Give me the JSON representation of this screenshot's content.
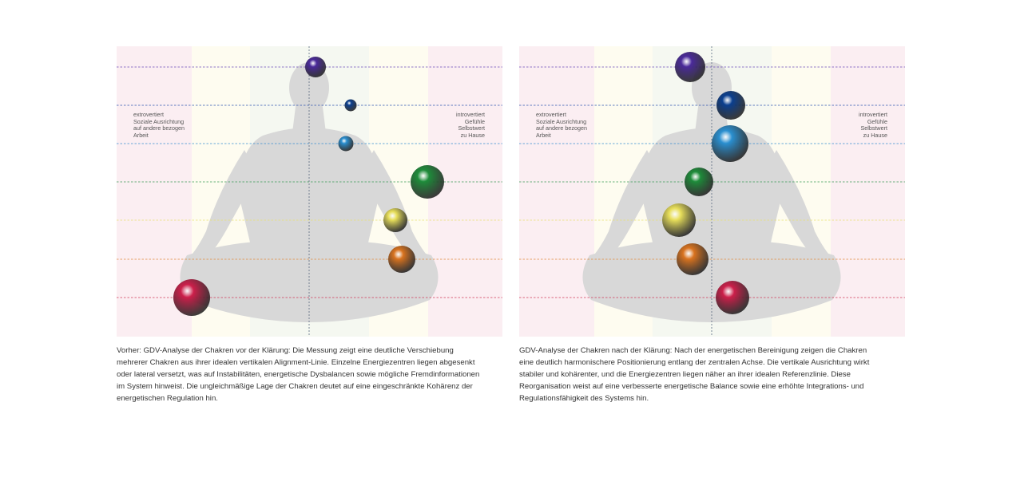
{
  "panels": [
    {
      "id": "before",
      "left_label": [
        "extrovertiert",
        "Soziale Ausrichtung",
        "auf andere bezogen",
        "Arbeit"
      ],
      "right_label": [
        "introvertiert",
        "Gefühle",
        "Selbstwert",
        "zu Hause"
      ],
      "caption": "Vorher: GDV-Analyse der Chakren vor der Klärung: Die Messung zeigt eine deutliche Verschiebung mehrerer Chakren aus ihrer idealen vertikalen Alignment-Linie. Einzelne Energiezentren liegen abgesenkt oder lateral versetzt, was auf Instabilitäten, energetische Dysbalancen sowie mögliche Fremdinformationen im System hinweist. Die ungleichmäßige Lage der Chakren deutet auf eine eingeschränkte Kohärenz der energetischen Regulation hin.",
      "chakras": [
        {
          "name": "crown",
          "color": "#4a2a9a"
        },
        {
          "name": "third-eye",
          "color": "#0b3f8f"
        },
        {
          "name": "throat",
          "color": "#2a8fd0"
        },
        {
          "name": "heart",
          "color": "#1e8c3a"
        },
        {
          "name": "solar-plexus",
          "color": "#e8df5a"
        },
        {
          "name": "sacral",
          "color": "#d9731f"
        },
        {
          "name": "root",
          "color": "#cc1f4a"
        }
      ]
    },
    {
      "id": "after",
      "left_label": [
        "extrovertiert",
        "Soziale Ausrichtung",
        "auf andere bezogen",
        "Arbeit"
      ],
      "right_label": [
        "introvertiert",
        "Gefühle",
        "Selbstwert",
        "zu Hause"
      ],
      "caption": "GDV-Analyse der Chakren nach der Klärung: Nach der energetischen Bereinigung zeigen die Chakren eine deutlich harmonischere Positionierung entlang der zentralen Achse. Die vertikale Ausrichtung wirkt stabiler und kohärenter, und die Energiezentren liegen näher an ihrer idealen Referenzlinie. Diese Reorganisation weist auf eine verbesserte energetische Balance sowie eine erhöhte Integrations- und Regulationsfähigkeit des Systems hin.",
      "chakras": [
        {
          "name": "crown",
          "color": "#4a2a9a"
        },
        {
          "name": "third-eye",
          "color": "#0b3f8f"
        },
        {
          "name": "throat",
          "color": "#2a8fd0"
        },
        {
          "name": "heart",
          "color": "#1e8c3a"
        },
        {
          "name": "solar-plexus",
          "color": "#e8df5a"
        },
        {
          "name": "sacral",
          "color": "#d9731f"
        },
        {
          "name": "root",
          "color": "#cc1f4a"
        }
      ]
    }
  ]
}
